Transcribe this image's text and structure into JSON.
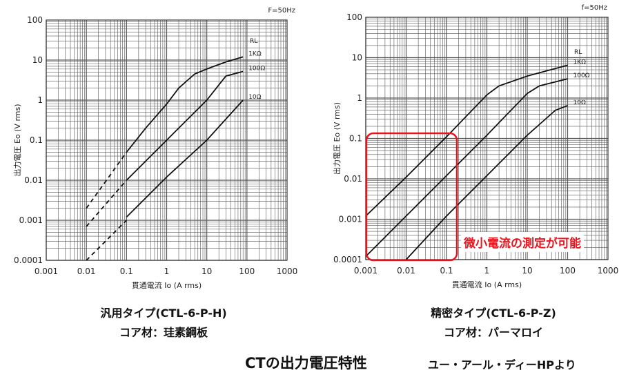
{
  "chart_data": [
    {
      "type": "line",
      "freq_label": "F=50Hz",
      "xlabel": "貫通電流 Io (A rms)",
      "ylabel": "出力電圧 Eo (V rms)",
      "xlim": [
        0.001,
        1000
      ],
      "ylim": [
        0.0001,
        100
      ],
      "log": true,
      "grid": true,
      "x_ticks": [
        "0.001",
        "0.01",
        "0.1",
        "1",
        "10",
        "100",
        "1000"
      ],
      "y_ticks": [
        "100",
        "10",
        "1",
        "0.1",
        "0.01",
        "0.001",
        "0.0001"
      ],
      "legend_title": "RL",
      "series": [
        {
          "name": "1KΩ",
          "dashed": [
            [
              0.01,
              0.002
            ],
            [
              0.1,
              0.05
            ]
          ],
          "points": [
            [
              0.1,
              0.05
            ],
            [
              0.3,
              0.2
            ],
            [
              1,
              0.8
            ],
            [
              2,
              2
            ],
            [
              5,
              4.5
            ],
            [
              10,
              6
            ],
            [
              30,
              9
            ],
            [
              80,
              12
            ]
          ]
        },
        {
          "name": "100Ω",
          "dashed": [
            [
              0.01,
              0.0007
            ],
            [
              0.1,
              0.01
            ]
          ],
          "points": [
            [
              0.1,
              0.01
            ],
            [
              1,
              0.1
            ],
            [
              10,
              1
            ],
            [
              30,
              4
            ],
            [
              80,
              5.2
            ]
          ]
        },
        {
          "name": "10Ω",
          "dashed": [
            [
              0.01,
              0.0001
            ],
            [
              0.1,
              0.001
            ]
          ],
          "points": [
            [
              0.1,
              0.0012
            ],
            [
              1,
              0.012
            ],
            [
              10,
              0.1
            ],
            [
              80,
              1
            ]
          ]
        }
      ]
    },
    {
      "type": "line",
      "freq_label": "f=50Hz",
      "xlabel": "貫通電流 Io (A rms)",
      "ylabel": "出力電圧 Eo (V rms)",
      "xlim": [
        0.001,
        1000
      ],
      "ylim": [
        0.0001,
        100
      ],
      "log": true,
      "grid": true,
      "x_ticks": [
        "0.001",
        "0.01",
        "0.1",
        "1",
        "10",
        "100",
        "1000"
      ],
      "y_ticks": [
        "100",
        "10",
        "1",
        "0.1",
        "0.01",
        "0.001",
        "0.0001"
      ],
      "legend_title": "RL",
      "series": [
        {
          "name": "1KΩ",
          "points": [
            [
              0.001,
              0.0012
            ],
            [
              0.01,
              0.011
            ],
            [
              0.1,
              0.11
            ],
            [
              1,
              1.2
            ],
            [
              2,
              2
            ],
            [
              10,
              3.5
            ],
            [
              100,
              6.5
            ]
          ]
        },
        {
          "name": "100Ω",
          "points": [
            [
              0.001,
              0.00012
            ],
            [
              0.01,
              0.0012
            ],
            [
              0.1,
              0.012
            ],
            [
              1,
              0.12
            ],
            [
              10,
              1.3
            ],
            [
              20,
              2
            ],
            [
              100,
              3
            ]
          ]
        },
        {
          "name": "10Ω",
          "points": [
            [
              0.01,
              0.0001
            ],
            [
              0.1,
              0.0012
            ],
            [
              1,
              0.012
            ],
            [
              10,
              0.12
            ],
            [
              50,
              0.5
            ],
            [
              100,
              0.65
            ]
          ]
        }
      ]
    }
  ],
  "captions": {
    "left_type": "汎用タイプ(CTL-6-P-H)",
    "left_core": "コア材：珪素鋼板",
    "right_type": "精密タイプ(CTL-6-P-Z)",
    "right_core": "コア材：パーマロイ",
    "title": "CTの出力電圧特性",
    "source": "ユー・アール・ディーHPより",
    "highlight_note": "微小電流の測定が可能"
  },
  "colors": {
    "highlight": "#e8141e",
    "grid": "#555555",
    "curve": "#111111"
  }
}
